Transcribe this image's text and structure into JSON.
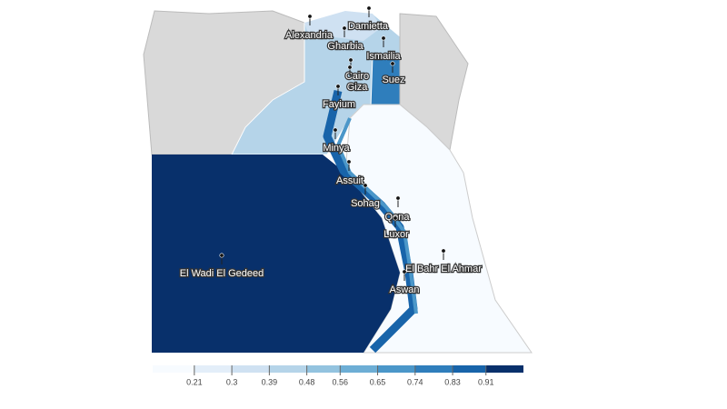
{
  "map": {
    "type": "choropleth",
    "places": [
      "Alexandria",
      "Damietta",
      "Gharbia",
      "Ismailia",
      "Cairo",
      "Giza",
      "Suez",
      "Fayium",
      "Minya",
      "Assuit",
      "Sohag",
      "Qena",
      "Luxor",
      "El Bahr El Ahmar",
      "Aswan",
      "El Wadi El Gedeed"
    ],
    "legend": {
      "lim": [
        0.11,
        1.0
      ],
      "ticks": [
        0.21,
        0.3,
        0.39,
        0.48,
        0.56,
        0.65,
        0.74,
        0.83,
        0.91
      ],
      "colors": [
        "#f7fbff",
        "#e3eef9",
        "#cfe1f2",
        "#b5d4e9",
        "#93c3df",
        "#6daed5",
        "#4b97c9",
        "#2f7ebc",
        "#1864aa",
        "#08306b"
      ]
    }
  }
}
